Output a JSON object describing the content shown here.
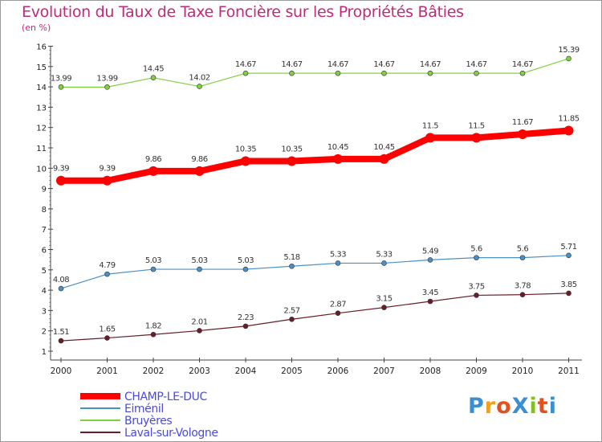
{
  "title": "Evolution du Taux de Taxe Foncière sur les Propriétés Bâties",
  "subtitle": "(en %)",
  "logo": {
    "text": "ProXiti",
    "colors": [
      "#3a8fd0",
      "#f0a020",
      "#e05020",
      "#3a8fd0",
      "#80c020",
      "#e05020",
      "#3a8fd0"
    ]
  },
  "chart_data": {
    "type": "line",
    "title": "Evolution du Taux de Taxe Foncière sur les Propriétés Bâties",
    "ylabel": "(en %)",
    "xlabel": "",
    "ylim": [
      1,
      16
    ],
    "yticks": [
      "1",
      "2",
      "3",
      "4",
      "5",
      "6",
      "7",
      "8",
      "9",
      "10",
      "11",
      "12",
      "13",
      "14",
      "15",
      "16"
    ],
    "categories": [
      "2000",
      "2001",
      "2002",
      "2003",
      "2004",
      "2005",
      "2006",
      "2007",
      "2008",
      "2009",
      "2010",
      "2011"
    ],
    "legend_position": "bottom-left",
    "series": [
      {
        "name": "CHAMP-LE-DUC",
        "color": "#ff0000",
        "values": [
          9.39,
          9.39,
          9.86,
          9.86,
          10.35,
          10.35,
          10.45,
          10.45,
          11.5,
          11.5,
          11.67,
          11.85
        ],
        "labels": [
          "9.39",
          "9.39",
          "9.86",
          "9.86",
          "10.35",
          "10.35",
          "10.45",
          "10.45",
          "11.5",
          "11.5",
          "11.67",
          "11.85"
        ]
      },
      {
        "name": "Eiménil",
        "color": "#4a90c8",
        "values": [
          4.08,
          4.79,
          5.03,
          5.03,
          5.03,
          5.18,
          5.33,
          5.33,
          5.49,
          5.6,
          5.6,
          5.71
        ],
        "labels": [
          "4.08",
          "4.79",
          "5.03",
          "5.03",
          "5.03",
          "5.18",
          "5.33",
          "5.33",
          "5.49",
          "5.6",
          "5.6",
          "5.71"
        ]
      },
      {
        "name": "Bruyères",
        "color": "#80d040",
        "values": [
          13.99,
          13.99,
          14.45,
          14.02,
          14.67,
          14.67,
          14.67,
          14.67,
          14.67,
          14.67,
          14.67,
          15.39
        ],
        "labels": [
          "13.99",
          "13.99",
          "14.45",
          "14.02",
          "14.67",
          "14.67",
          "14.67",
          "14.67",
          "14.67",
          "14.67",
          "14.67",
          "15.39"
        ]
      },
      {
        "name": "Laval-sur-Vologne",
        "color": "#6a1c28",
        "values": [
          1.51,
          1.65,
          1.82,
          2.01,
          2.23,
          2.57,
          2.87,
          3.15,
          3.45,
          3.75,
          3.78,
          3.85
        ],
        "labels": [
          "1.51",
          "1.65",
          "1.82",
          "2.01",
          "2.23",
          "2.57",
          "2.87",
          "3.15",
          "3.45",
          "3.75",
          "3.78",
          "3.85"
        ]
      }
    ]
  }
}
